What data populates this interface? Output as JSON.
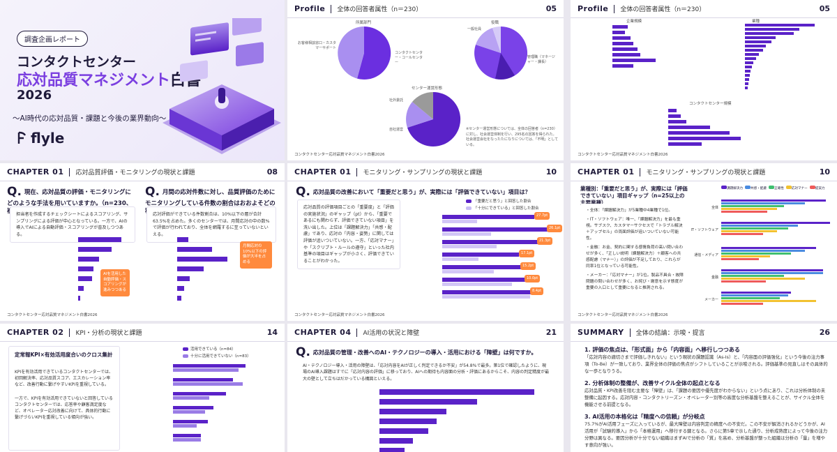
{
  "cover": {
    "badge": "調査企画レポート",
    "title1": "コンタクトセンター",
    "title2a": "応対品質マネジメント",
    "title2b": "白書",
    "year": "2026",
    "subtitle": "〜AI時代の応対品質・課題と今後の業界動向〜",
    "logo": "flyle"
  },
  "p05": {
    "tag": "Profile",
    "title": "全体の回答者属性（n＝230）",
    "page": "05",
    "footer": "コンタクトセンター応対品質マネジメント白書2026",
    "chart1_label": "所属部門",
    "chart2_label": "役職",
    "chart3_label": "センター運営形態",
    "note": "※センター運営形態については、全体の回答者（n=230）に対し、社会運営体制を行い、295名の回答を得られた。社会運営会社をなったたになりについては、「不明」としている。"
  },
  "p05b": {
    "tag": "Profile",
    "title": "全体の回答者属性（n＝230）",
    "page": "05",
    "footer": "コンタクトセンター応対品質マネジメント白書2026",
    "chart1_label": "企業規模",
    "chart2_label": "業種",
    "chart3_label": "コンタクトセンター規模"
  },
  "p08": {
    "tag": "CHAPTER 01",
    "title": "応対品質評価・モニタリングの現状と課題",
    "page": "08",
    "footer": "コンタクトセンター応対品質マネジメント白書2026",
    "q1": "現在、応対品質の評価・モニタリングにどのような手法を用いていますか。（n=230、複数回答）",
    "q2": "月間の応対件数に対し、品質評価のためにモニタリングしている件数の割合はおおよそどの程度ですか。（n=230、単一回答）",
    "desc1": "担当者を作成するチェックシートによるスコアリング、サンプリングによる評価が中心となっている。一方で、AIの導入でAIによる自動評価・スコアリングが普及しつつある。",
    "desc2": "応対評価ができている件数割合は、10%以下の層が合計63.5%を占めた。多くのセンターでは、月間応対の中の数%で評価が行われており、全体を網羅するに至っていないといえる。",
    "callout1": "AIを活用した自動評価・スコアリングが進みつつある",
    "callout2": "月間応対の10%以下の評価が大半を占める"
  },
  "p10": {
    "tag": "CHAPTER 01",
    "title": "モニタリング・サンプリングの現状と課題",
    "page": "10",
    "footer": "コンタクトセンター応対品質マネジメント白書2026",
    "question": "応対品質の改善において「重要だと思う」が、実際には「評価できていない」項目は？（n=230、複数回答）",
    "desc": "応対品質の評価項目ごとの「重要度」と「評価の実施状況」のギャップ（pt）から、「重要であるにも関わらず、評価できていない項目」を洗い出した。上位は「課題解決力」「共感・配慮」であり、応対の「内容・姿勢」に関しては評価が追いついていない。一方、「応対マナー」や「スクリプト・ルールの遵守」といった社内基準の項目はギャップが小さく、評価できていることがわかった。",
    "legend1": "「重要だと思う」と回答した割合",
    "legend2": "「十分にできている」と回答した割合"
  },
  "p10b": {
    "tag": "CHAPTER 01",
    "title": "モニタリング・サンプリングの現状と課題",
    "page": "10",
    "footer": "コンタクトセンター応対品質マネジメント白書2026",
    "question": "業種別：「重要だと思う」が、実際には「評価できていない」項目ギャップ（n=25以上の主要業種）",
    "points": [
      "・全体：「課題解決力」が5業種中4業種で1位。",
      "・IT・ソフトウェア：唯一、「課題解決力」を最も重視。サブスク、カスタマーサクセスで「トラブル解決＋アップセル」の両面評価が追いついていない可能性。",
      "・金融：お金、契約に関する感情負荷の高い問い合わせが多く、「正しい説明（課題解決力）＋顧客への共感配慮（マナー）」の評価が不足しており、これらが同率1位となっている可能性。",
      "・メーカー：「応対マナー」が1位。製品不具合・故障問題の問い合わせが多く、お詫び・謝意を示す態度が重要の入口として重要になると推測される。"
    ]
  },
  "p14": {
    "tag": "CHAPTER 02",
    "title": "KPI・分析の現状と課題",
    "page": "14",
    "heading": "定常報KPI×有効活用度合いのクロス集計",
    "desc1": "KPIを有効活用できているコンタクトセンターでは、初回解決率、応対品質スコア、エスカレーション率など、改善行動に繋げやすいKPIを重視している。",
    "desc2": "一方で、KPIを有効活用できていないと回答しているコンタクトセンターでは、応答率や顧客満足度など、オペレーター応対改善に向けて、具体的行動に繋げづらいKPIを重視している傾向が強い。",
    "legend1": "活用できている（n=84）",
    "legend2": "十分に活用できていない（n=83）"
  },
  "p21": {
    "tag": "CHAPTER 04",
    "title": "AI活用の状況と障壁",
    "page": "21",
    "question": "応対品質の管理・改善へのAI・テクノロジーの導入・活用における「障壁」は何ですか。（n=230、複数回答）",
    "desc": "AI・テクノロジー導入・活用の障壁は、「応対内容をAIが正しく判定できるか不安」が54.8%で最多。第1位で確認したように、現場のAI導入課題はすでに「応対内容の評価」に移っており、AIへの期待も内容面の分析・評価にあるからこそ、内容の判定精度が最大の壁として立ちはだかっている構図といえる。"
  },
  "p26": {
    "tag": "SUMMARY",
    "title": "全体の結論：示唆・提言",
    "page": "26",
    "h1": "1. 評価の焦点は、「形式面」から「内容面」へ移行しつつある",
    "t1": "「応対内容の適切さまで評価しきれない」という現状の課題認識（As-Is）と、「内容面の評価強化」という今後の注力事項（To-Be）が一致しており、業界全体の評価の焦点がシフトしていることが示唆される。評価基準の見直しはその具体的な一歩となりうる。",
    "h2": "2. 分析体制の整備が、改善サイクル全体の起点となる",
    "t2": "応対品質・KPI改善を阻む主要な「障壁」は、「課題の要因や優先度がわからない」という点にあり、これは分析体制の未整備に起因する。応対内容・コンタクトリーズン・オペレーター別等の高度な分析基盤を整えることが、サイクル全体を機能させる前提となる。",
    "h3": "3. AI活用の本格化は「精度への信頼」が分岐点",
    "t3": "75.7%がAI活用フェーズに入っているが、最大障壁は内容判定の精度への不安だ。この不安が解消されるかどうかが、AI活用が「試験的導入」から「本格運用」へ移行する鍵となる。さらに第5章で示した通り、分析成熟度によって今後の注力分野は異なる。要因分析が十分でない組織はまずAIで分析の「質」を高め、分析基盤が整った組織は分析の「量」を増やす意向が強い。"
  }
}
